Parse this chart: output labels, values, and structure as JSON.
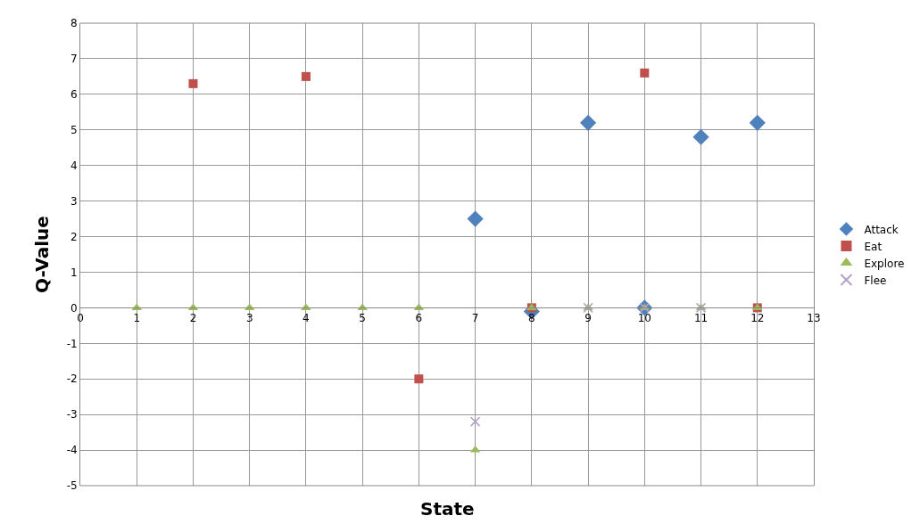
{
  "chart_data": {
    "type": "scatter",
    "xlabel": "State",
    "ylabel": "Q-Value",
    "xlim": [
      0,
      13
    ],
    "xticks": [
      0,
      1,
      2,
      3,
      4,
      5,
      6,
      7,
      8,
      9,
      10,
      11,
      12,
      13
    ],
    "ylim": [
      -5,
      8
    ],
    "yticks": [
      -5,
      -4,
      -3,
      -2,
      -1,
      0,
      1,
      2,
      3,
      4,
      5,
      6,
      7,
      8
    ],
    "grid": true,
    "legend": "right",
    "series": [
      {
        "name": "Attack",
        "color": "#4f81bd",
        "marker": "diamond",
        "x": [
          7,
          8,
          9,
          10,
          11,
          12
        ],
        "values": [
          2.5,
          -0.1,
          5.2,
          0,
          4.8,
          5.2
        ]
      },
      {
        "name": "Eat",
        "color": "#c0504d",
        "marker": "square",
        "x": [
          2,
          4,
          6,
          8,
          10,
          12
        ],
        "values": [
          6.3,
          6.5,
          -2,
          0,
          6.6,
          0
        ]
      },
      {
        "name": "Explore",
        "color": "#9bbb59",
        "marker": "triangle",
        "x": [
          1,
          2,
          3,
          4,
          5,
          6,
          7,
          8,
          9,
          10,
          11,
          12
        ],
        "values": [
          0,
          0,
          0,
          0,
          0,
          0,
          -4,
          0,
          0,
          0,
          0,
          0
        ]
      },
      {
        "name": "Flee",
        "color": "#b3a2c7",
        "marker": "cross",
        "x": [
          7,
          9,
          10,
          11
        ],
        "values": [
          -3.2,
          0,
          0,
          0
        ]
      }
    ]
  }
}
